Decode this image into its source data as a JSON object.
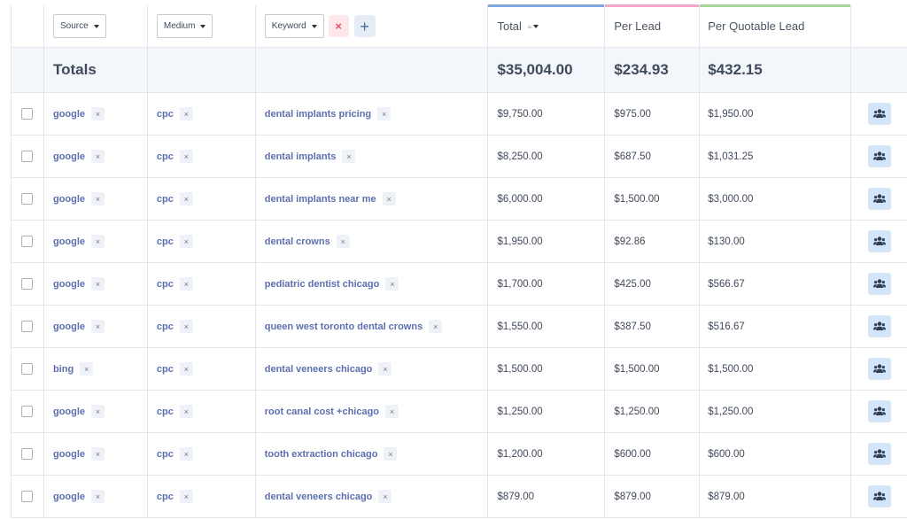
{
  "header": {
    "source_label": "Source",
    "medium_label": "Medium",
    "keyword_label": "Keyword",
    "remove_symbol": "×",
    "add_symbol": "+",
    "total_label": "Total",
    "per_lead_label": "Per Lead",
    "per_quotable_lead_label": "Per Quotable Lead",
    "colors": {
      "total": "#7fa6db",
      "per_lead": "#f2a6c8",
      "per_quotable_lead": "#a9d39b"
    }
  },
  "totals": {
    "label": "Totals",
    "total": "$35,004.00",
    "per_lead": "$234.93",
    "per_quotable_lead": "$432.15"
  },
  "remove_tag_symbol": "×",
  "action_icon": "users-icon",
  "rows": [
    {
      "source": "google",
      "medium": "cpc",
      "keyword": "dental implants pricing",
      "total": "$9,750.00",
      "per_lead": "$975.00",
      "per_quotable_lead": "$1,950.00"
    },
    {
      "source": "google",
      "medium": "cpc",
      "keyword": "dental implants",
      "total": "$8,250.00",
      "per_lead": "$687.50",
      "per_quotable_lead": "$1,031.25"
    },
    {
      "source": "google",
      "medium": "cpc",
      "keyword": "dental implants near me",
      "total": "$6,000.00",
      "per_lead": "$1,500.00",
      "per_quotable_lead": "$3,000.00"
    },
    {
      "source": "google",
      "medium": "cpc",
      "keyword": "dental crowns",
      "total": "$1,950.00",
      "per_lead": "$92.86",
      "per_quotable_lead": "$130.00"
    },
    {
      "source": "google",
      "medium": "cpc",
      "keyword": "pediatric dentist chicago",
      "total": "$1,700.00",
      "per_lead": "$425.00",
      "per_quotable_lead": "$566.67"
    },
    {
      "source": "google",
      "medium": "cpc",
      "keyword": "queen west toronto dental crowns",
      "total": "$1,550.00",
      "per_lead": "$387.50",
      "per_quotable_lead": "$516.67"
    },
    {
      "source": "bing",
      "medium": "cpc",
      "keyword": "dental veneers chicago",
      "total": "$1,500.00",
      "per_lead": "$1,500.00",
      "per_quotable_lead": "$1,500.00"
    },
    {
      "source": "google",
      "medium": "cpc",
      "keyword": "root canal cost +chicago",
      "total": "$1,250.00",
      "per_lead": "$1,250.00",
      "per_quotable_lead": "$1,250.00"
    },
    {
      "source": "google",
      "medium": "cpc",
      "keyword": "tooth extraction chicago",
      "total": "$1,200.00",
      "per_lead": "$600.00",
      "per_quotable_lead": "$600.00"
    },
    {
      "source": "google",
      "medium": "cpc",
      "keyword": "dental veneers chicago",
      "total": "$879.00",
      "per_lead": "$879.00",
      "per_quotable_lead": "$879.00"
    }
  ]
}
